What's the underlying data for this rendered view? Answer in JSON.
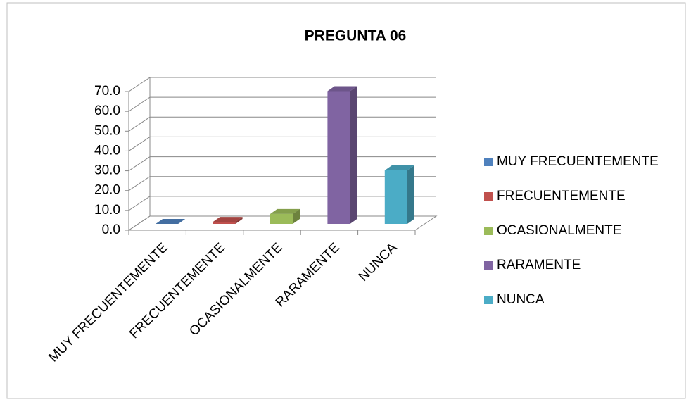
{
  "chart_data": {
    "type": "bar3d",
    "title": "PREGUNTA 06",
    "categories": [
      "MUY FRECUENTEMENTE",
      "FRECUENTEMENTE",
      "OCASIONALMENTE",
      "RARAMENTE",
      "NUNCA"
    ],
    "values": [
      0,
      1.0,
      5.0,
      67.0,
      27.0
    ],
    "colors": [
      "#4f81bd",
      "#c0504d",
      "#9bbb59",
      "#8064a2",
      "#4bacc6"
    ],
    "ylim": [
      0,
      70
    ],
    "yticks": [
      {
        "value": 0,
        "label": "0.0"
      },
      {
        "value": 10,
        "label": "10.0"
      },
      {
        "value": 20,
        "label": "20.0"
      },
      {
        "value": 30,
        "label": "30.0"
      },
      {
        "value": 40,
        "label": "40.0"
      },
      {
        "value": 50,
        "label": "50.0"
      },
      {
        "value": 60,
        "label": "60.0"
      },
      {
        "value": 70,
        "label": "70.0"
      }
    ],
    "grid": true,
    "legend": "right"
  }
}
